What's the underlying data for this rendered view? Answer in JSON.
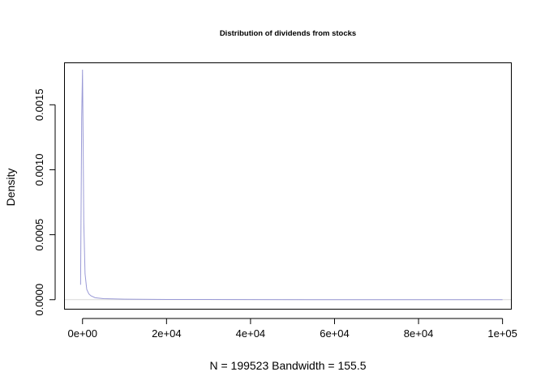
{
  "chart_data": {
    "type": "line",
    "title": "Distribution of dividends from stocks",
    "xlabel": "N = 199523   Bandwidth = 155.5",
    "ylabel": "Density",
    "xlim": [
      -4200,
      102000
    ],
    "ylim": [
      -7e-05,
      0.00182
    ],
    "x_ticks": [
      {
        "value": 0,
        "label": "0e+00"
      },
      {
        "value": 20000,
        "label": "2e+04"
      },
      {
        "value": 40000,
        "label": "4e+04"
      },
      {
        "value": 60000,
        "label": "6e+04"
      },
      {
        "value": 80000,
        "label": "8e+04"
      },
      {
        "value": 100000,
        "label": "1e+05"
      }
    ],
    "y_ticks": [
      {
        "value": 0,
        "label": "0.0000"
      },
      {
        "value": 0.0005,
        "label": "0.0005"
      },
      {
        "value": 0.001,
        "label": "0.0010"
      },
      {
        "value": 0.0015,
        "label": "0.0015"
      }
    ],
    "grid": false,
    "baseline_color": "#d9d9d9",
    "series": [
      {
        "color": "#9a9ad6",
        "x": [
          -460,
          -200,
          0,
          150,
          300,
          600,
          1000,
          1500,
          2000,
          3000,
          5000,
          10000,
          20000,
          40000,
          60000,
          80000,
          100000
        ],
        "y": [
          0.000115,
          0.0014,
          0.00177,
          0.0012,
          0.0006,
          0.0002,
          8e-05,
          4.5e-05,
          3e-05,
          1.5e-05,
          8e-06,
          4e-06,
          2e-06,
          8e-07,
          4e-07,
          2e-07,
          1e-07
        ]
      }
    ]
  }
}
